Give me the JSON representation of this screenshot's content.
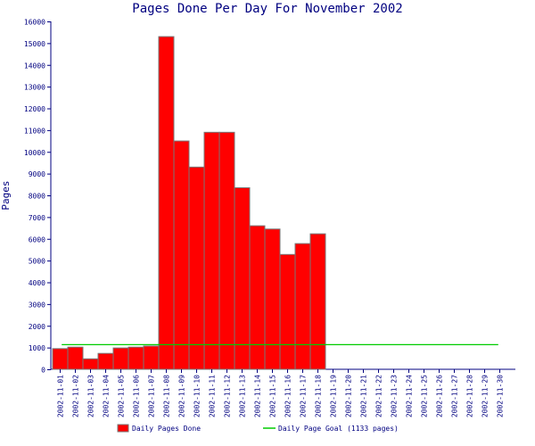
{
  "chart_data": {
    "type": "bar",
    "title": "Pages Done Per Day For November 2002",
    "xlabel": "",
    "ylabel": "Pages",
    "ylim": [
      0,
      16000
    ],
    "yticks": [
      0,
      1000,
      2000,
      3000,
      4000,
      5000,
      6000,
      7000,
      8000,
      9000,
      10000,
      11000,
      12000,
      13000,
      14000,
      15000,
      16000
    ],
    "categories": [
      "2002-11-01",
      "2002-11-02",
      "2002-11-03",
      "2002-11-04",
      "2002-11-05",
      "2002-11-06",
      "2002-11-07",
      "2002-11-08",
      "2002-11-09",
      "2002-11-10",
      "2002-11-11",
      "2002-11-12",
      "2002-11-13",
      "2002-11-14",
      "2002-11-15",
      "2002-11-16",
      "2002-11-17",
      "2002-11-18",
      "2002-11-19",
      "2002-11-20",
      "2002-11-21",
      "2002-11-22",
      "2002-11-23",
      "2002-11-24",
      "2002-11-25",
      "2002-11-26",
      "2002-11-27",
      "2002-11-28",
      "2002-11-29",
      "2002-11-30"
    ],
    "series": [
      {
        "name": "Daily Pages Done",
        "type": "bar",
        "color": "#ff0000",
        "values": [
          950,
          1020,
          480,
          730,
          980,
          1020,
          1070,
          15300,
          10500,
          9300,
          10900,
          10900,
          8350,
          6600,
          6450,
          5280,
          5780,
          6230,
          0,
          0,
          0,
          0,
          0,
          0,
          0,
          0,
          0,
          0,
          0,
          0
        ]
      },
      {
        "name": "Daily Page Goal (1133 pages)",
        "type": "line",
        "color": "#00cc00",
        "values": [
          1133,
          1133,
          1133,
          1133,
          1133,
          1133,
          1133,
          1133,
          1133,
          1133,
          1133,
          1133,
          1133,
          1133,
          1133,
          1133,
          1133,
          1133,
          1133,
          1133,
          1133,
          1133,
          1133,
          1133,
          1133,
          1133,
          1133,
          1133,
          1133,
          1133
        ]
      }
    ],
    "grid": false,
    "legend_position": "bottom",
    "colors": {
      "text": "#000080",
      "axis": "#000080",
      "bar_fill": "#ff0000",
      "bar_border": "#777777",
      "goal_line": "#00cc00"
    }
  }
}
